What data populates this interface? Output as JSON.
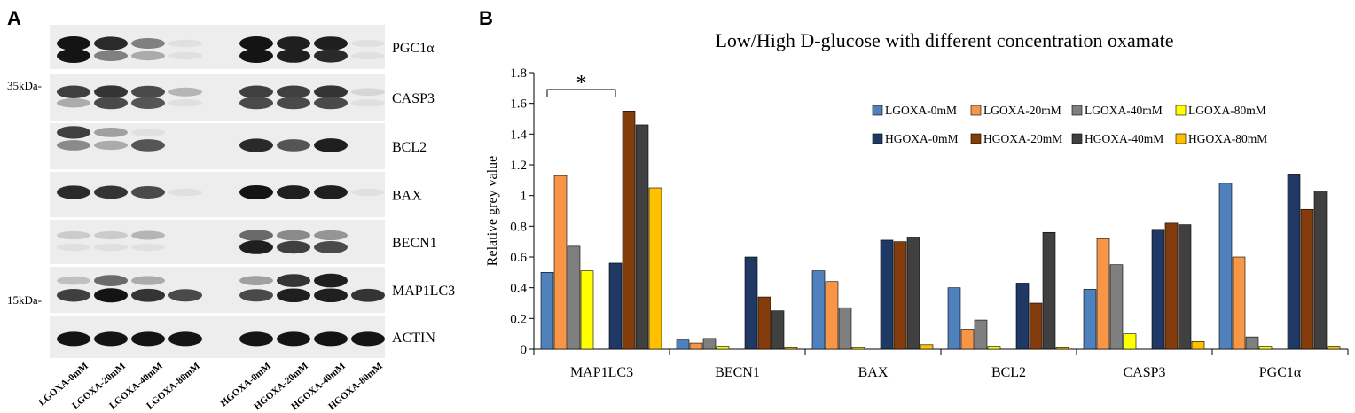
{
  "panel_a": {
    "letter": "A",
    "bands": [
      "PGC1α",
      "CASP3",
      "BCL2",
      "BAX",
      "BECN1",
      "MAP1LC3",
      "ACTIN"
    ],
    "markers": [
      "35kDa-",
      "15kDa-"
    ],
    "lanes": [
      "LGOXA-0mM",
      "LGOXA-20mM",
      "LGOXA-40mM",
      "LGOXA-80mM",
      "HGOXA-0mM",
      "HGOXA-20mM",
      "HGOXA-40mM",
      "HGOXA-80mM"
    ]
  },
  "panel_b": {
    "letter": "B"
  },
  "chart_data": {
    "type": "bar",
    "title": "Low/High D-glucose with different concentration oxamate",
    "xlabel": "",
    "ylabel": "Relative grey value",
    "ylim": [
      0,
      1.8
    ],
    "yticks": [
      "0",
      "0.2",
      "0.4",
      "0.6",
      "0.8",
      "1",
      "1.2",
      "1.4",
      "1.6",
      "1.8"
    ],
    "categories": [
      "MAP1LC3",
      "BECN1",
      "BAX",
      "BCL2",
      "CASP3",
      "PGC1α"
    ],
    "series": [
      {
        "name": "LGOXA-0mM",
        "color": "#4f81bd",
        "values": [
          0.5,
          0.06,
          0.51,
          0.4,
          0.39,
          1.08
        ]
      },
      {
        "name": "LGOXA-20mM",
        "color": "#f79646",
        "values": [
          1.13,
          0.04,
          0.44,
          0.13,
          0.72,
          0.6
        ]
      },
      {
        "name": "LGOXA-40mM",
        "color": "#7f7f7f",
        "values": [
          0.67,
          0.07,
          0.27,
          0.19,
          0.55,
          0.08
        ]
      },
      {
        "name": "LGOXA-80mM",
        "color": "#ffff00",
        "values": [
          0.51,
          0.02,
          0.01,
          0.02,
          0.1,
          0.02
        ]
      },
      {
        "name": "HGOXA-0mM",
        "color": "#1f3864",
        "values": [
          0.56,
          0.6,
          0.71,
          0.43,
          0.78,
          1.14
        ]
      },
      {
        "name": "HGOXA-20mM",
        "color": "#843c0c",
        "values": [
          1.55,
          0.34,
          0.7,
          0.3,
          0.82,
          0.91
        ]
      },
      {
        "name": "HGOXA-40mM",
        "color": "#404040",
        "values": [
          1.46,
          0.25,
          0.73,
          0.76,
          0.81,
          1.03
        ]
      },
      {
        "name": "HGOXA-80mM",
        "color": "#ffc000",
        "values": [
          1.05,
          0.01,
          0.03,
          0.01,
          0.05,
          0.02
        ]
      }
    ],
    "legend_position": "top-right",
    "annotations": [
      {
        "text": "*",
        "category": "MAP1LC3",
        "span": "LGOXA-0mM to HGOXA-0mM"
      }
    ]
  }
}
